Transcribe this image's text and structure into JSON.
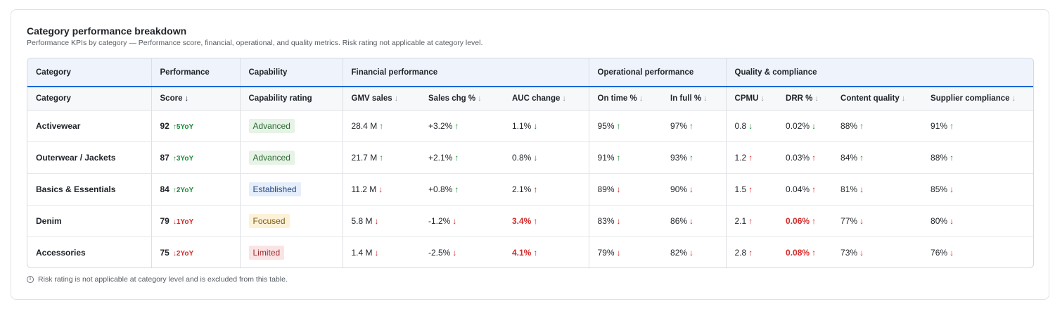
{
  "header": {
    "title": "Category performance breakdown",
    "subtitle": "Performance KPIs by category — Performance score, financial, operational, and quality metrics. Risk rating not applicable at category level."
  },
  "groups": [
    "Category",
    "Performance",
    "Capability",
    "Financial performance",
    "Operational performance",
    "Quality & compliance"
  ],
  "columns": [
    "Category",
    "Score",
    "Capability rating",
    "GMV sales",
    "Sales chg %",
    "AUC change",
    "On time %",
    "In full %",
    "CPMU",
    "DRR %",
    "Content quality",
    "Supplier compliance"
  ],
  "sort_arrow": "↓",
  "rows": [
    {
      "category": "Activewear",
      "score": "92",
      "yoy": "↑5YoY",
      "capability": "Advanced",
      "gmv": "28.4 M",
      "gmv_a": "↑",
      "sales": "+3.2%",
      "sales_a": "↑",
      "auc": "1.1%",
      "auc_a": "↓",
      "ontime": "95%",
      "ontime_a": "↑",
      "infull": "97%",
      "infull_a": "↑",
      "cpmu": "0.8",
      "cpmu_a": "↓",
      "drr": "0.02%",
      "drr_a": "↓",
      "content": "88%",
      "content_a": "↑",
      "supplier": "91%",
      "supplier_a": "↑"
    },
    {
      "category": "Outerwear / Jackets",
      "score": "87",
      "yoy": "↑3YoY",
      "capability": "Advanced",
      "gmv": "21.7 M",
      "gmv_a": "↑",
      "sales": "+2.1%",
      "sales_a": "↑",
      "auc": "0.8%",
      "auc_a": "↓",
      "ontime": "91%",
      "ontime_a": "↑",
      "infull": "93%",
      "infull_a": "↑",
      "cpmu": "1.2",
      "cpmu_a": "↑",
      "drr": "0.03%",
      "drr_a": "↑",
      "content": "84%",
      "content_a": "↑",
      "supplier": "88%",
      "supplier_a": "↑"
    },
    {
      "category": "Basics & Essentials",
      "score": "84",
      "yoy": "↑2YoY",
      "capability": "Established",
      "gmv": "11.2 M",
      "gmv_a": "↓",
      "sales": "+0.8%",
      "sales_a": "↑",
      "auc": "2.1%",
      "auc_a": "↑",
      "ontime": "89%",
      "ontime_a": "↓",
      "infull": "90%",
      "infull_a": "↓",
      "cpmu": "1.5",
      "cpmu_a": "↑",
      "drr": "0.04%",
      "drr_a": "↑",
      "content": "81%",
      "content_a": "↓",
      "supplier": "85%",
      "supplier_a": "↓"
    },
    {
      "category": "Denim",
      "score": "79",
      "yoy": "↓1YoY",
      "capability": "Focused",
      "gmv": "5.8 M",
      "gmv_a": "↓",
      "sales": "-1.2%",
      "sales_a": "↓",
      "auc": "3.4%",
      "auc_a": "↑",
      "ontime": "83%",
      "ontime_a": "↓",
      "infull": "86%",
      "infull_a": "↓",
      "cpmu": "2.1",
      "cpmu_a": "↑",
      "drr": "0.06%",
      "drr_a": "↑",
      "content": "77%",
      "content_a": "↓",
      "supplier": "80%",
      "supplier_a": "↓"
    },
    {
      "category": "Accessories",
      "score": "75",
      "yoy": "↓2YoY",
      "capability": "Limited",
      "gmv": "1.4 M",
      "gmv_a": "↓",
      "sales": "-2.5%",
      "sales_a": "↓",
      "auc": "4.1%",
      "auc_a": "↑",
      "ontime": "79%",
      "ontime_a": "↓",
      "infull": "82%",
      "infull_a": "↓",
      "cpmu": "2.8",
      "cpmu_a": "↑",
      "drr": "0.08%",
      "drr_a": "↑",
      "content": "73%",
      "content_a": "↓",
      "supplier": "76%",
      "supplier_a": "↓"
    }
  ],
  "footnote": "Risk rating is not applicable at category level and is excluded from this table.",
  "footnote_icon": "info-icon"
}
